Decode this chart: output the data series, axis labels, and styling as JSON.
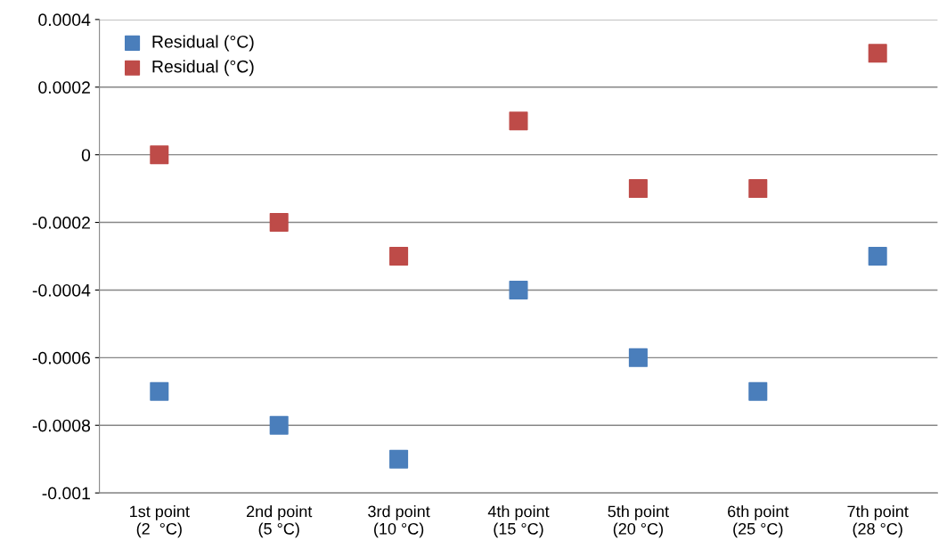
{
  "chart_data": {
    "type": "scatter",
    "categories": [
      "1st point\n(2  °C)",
      "2nd point\n(5 °C)",
      "3rd point\n(10 °C)",
      "4th point\n(15 °C)",
      "5th point\n(20 °C)",
      "6th point\n(25 °C)",
      "7th point\n(28 °C)"
    ],
    "series": [
      {
        "name": "Residual (°C)",
        "color": "#4a7ebb",
        "values": [
          -0.0007,
          -0.0008,
          -0.0009,
          -0.0004,
          -0.0006,
          -0.0007,
          -0.0003
        ]
      },
      {
        "name": "Residual (°C)",
        "color": "#be4b48",
        "values": [
          0,
          -0.0002,
          -0.0003,
          0.0001,
          -0.0001,
          -0.0001,
          0.0003
        ]
      }
    ],
    "ylim": [
      -0.001,
      0.0004
    ],
    "yticks": [
      -0.001,
      -0.0008,
      -0.0006,
      -0.0004,
      -0.0002,
      0,
      0.0002,
      0.0004
    ],
    "grid": "y",
    "legend": "top left",
    "marker": "square"
  }
}
